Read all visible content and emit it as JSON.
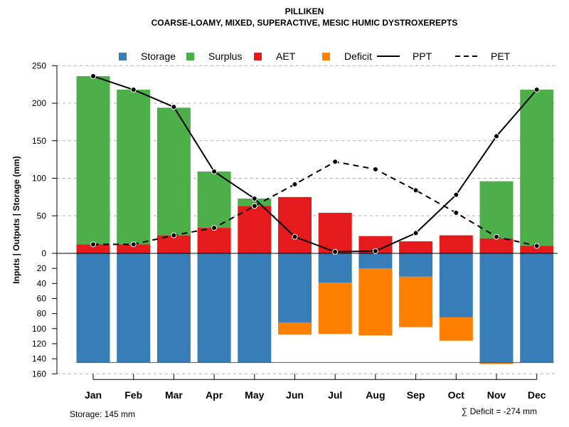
{
  "chart_data": {
    "type": "bar",
    "title": "PILLIKEN",
    "subtitle": "COARSE-LOAMY, MIXED, SUPERACTIVE, MESIC HUMIC DYSTROXEREPTS",
    "ylabel": "Inputs | Outputs | Storage    (mm)",
    "ylim_top": [
      0,
      250
    ],
    "ylim_bottom": [
      0,
      160
    ],
    "yticks_top": [
      0,
      50,
      100,
      150,
      200,
      250
    ],
    "yticks_bottom": [
      20,
      40,
      60,
      80,
      100,
      120,
      140,
      160
    ],
    "grid": true,
    "legend_position": "top",
    "categories": [
      "Jan",
      "Feb",
      "Mar",
      "Apr",
      "May",
      "Jun",
      "Jul",
      "Aug",
      "Sep",
      "Oct",
      "Nov",
      "Dec"
    ],
    "series": [
      {
        "name": "Storage",
        "color": "#377EB8",
        "values": [
          145,
          145,
          145,
          145,
          145,
          92,
          39,
          20,
          31,
          85,
          145,
          145
        ]
      },
      {
        "name": "Surplus",
        "color": "#4DAF4A",
        "values": [
          224,
          206,
          170,
          75,
          10,
          0,
          0,
          0,
          0,
          0,
          76,
          208
        ]
      },
      {
        "name": "AET",
        "color": "#E41A1C",
        "values": [
          12,
          12,
          24,
          34,
          63,
          75,
          54,
          23,
          16,
          24,
          20,
          10
        ]
      },
      {
        "name": "Deficit",
        "color": "#FF7F00",
        "values": [
          0,
          0,
          0,
          0,
          0,
          16,
          68,
          89,
          67,
          31,
          2,
          0
        ]
      },
      {
        "name": "PPT",
        "color": "#000000",
        "style": "solid",
        "values": [
          236,
          218,
          195,
          109,
          73,
          22,
          2,
          3,
          27,
          78,
          156,
          218
        ]
      },
      {
        "name": "PET",
        "color": "#000000",
        "style": "dashed",
        "values": [
          12,
          12,
          24,
          34,
          63,
          92,
          122,
          112,
          84,
          54,
          22,
          10
        ]
      }
    ],
    "annotations": {
      "storage": "Storage: 145 mm",
      "deficit": "∑ Deficit = -274 mm"
    }
  }
}
